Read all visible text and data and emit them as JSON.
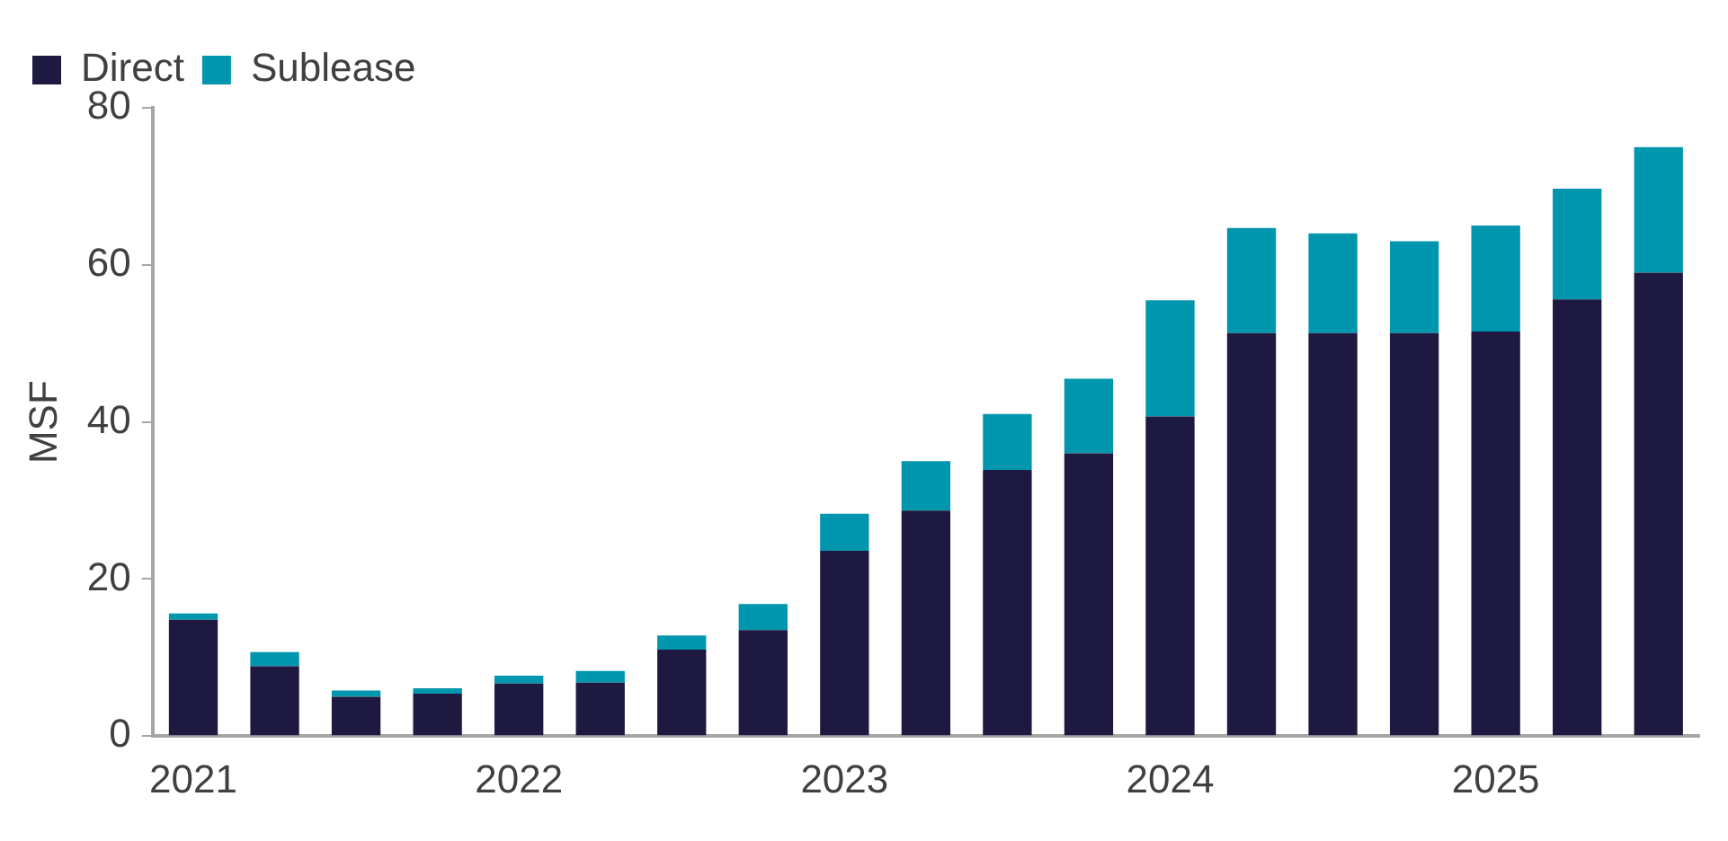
{
  "chart_data": {
    "type": "bar",
    "stacked": true,
    "ylabel": "MSF",
    "categories": [
      "2021",
      null,
      null,
      null,
      "2022",
      null,
      null,
      null,
      "2023",
      null,
      null,
      null,
      "2024",
      null,
      null,
      null,
      "2025",
      null,
      null
    ],
    "series": [
      {
        "name": "Direct",
        "color": "#1e1940",
        "values": [
          14.8,
          8.9,
          5.0,
          5.4,
          6.7,
          6.8,
          11,
          13.5,
          23.6,
          28.7,
          33.9,
          36,
          40.7,
          51.3,
          51.3,
          51.3,
          51.5,
          55.6,
          59
        ]
      },
      {
        "name": "Sublease",
        "color": "#0096ae",
        "values": [
          0.8,
          1.8,
          0.8,
          0.7,
          1.0,
          1.5,
          1.8,
          3.3,
          4.7,
          6.3,
          7.1,
          9.5,
          14.8,
          13.4,
          12.7,
          11.7,
          13.5,
          14.1,
          16
        ]
      }
    ],
    "ylim": [
      0,
      80
    ],
    "yticks": [
      0,
      20,
      40,
      60,
      80
    ],
    "grid": false,
    "legend": "top left"
  }
}
